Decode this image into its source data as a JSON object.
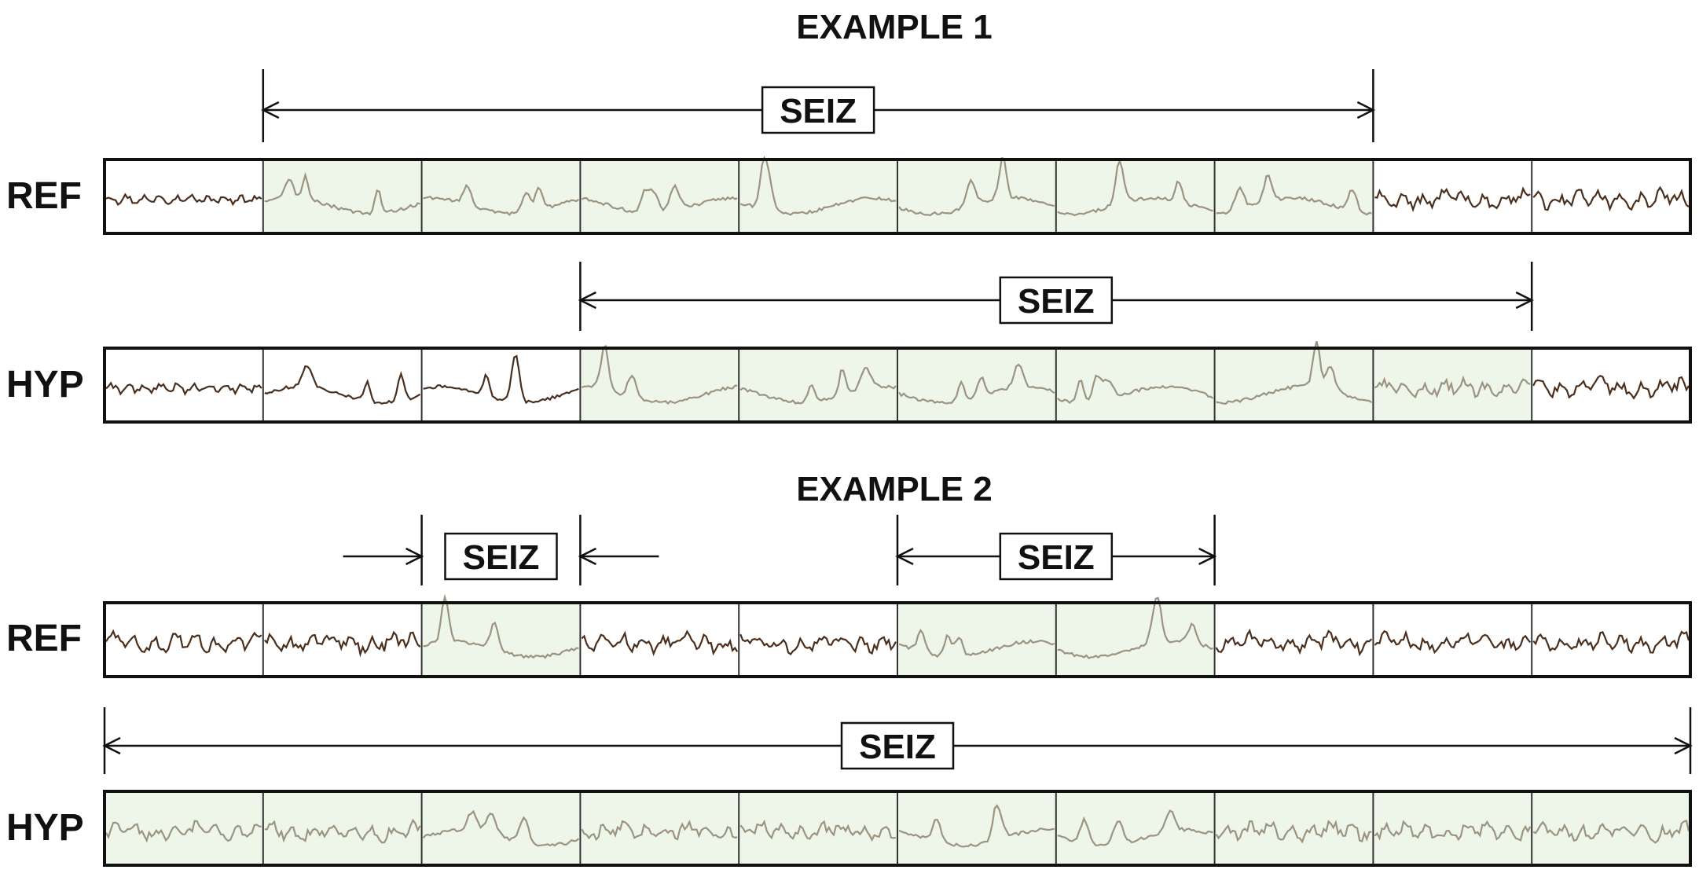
{
  "examples": [
    {
      "title": "EXAMPLE 1",
      "ref": {
        "label": "REF",
        "epoch_wave": [
          "low",
          "spike",
          "spike",
          "spike",
          "spike",
          "spike",
          "spike",
          "spike",
          "mid",
          "mid"
        ],
        "seiz_epochs": [
          1,
          2,
          3,
          4,
          5,
          6,
          7
        ],
        "events": [
          {
            "label": "SEIZ",
            "start_epoch": 1,
            "end_epoch": 8
          }
        ]
      },
      "hyp": {
        "label": "HYP",
        "epoch_wave": [
          "low",
          "spike",
          "spike",
          "spike",
          "spike",
          "spike",
          "spike",
          "spike",
          "mid",
          "mid"
        ],
        "seiz_epochs": [
          3,
          4,
          5,
          6,
          7,
          8
        ],
        "events": [
          {
            "label": "SEIZ",
            "start_epoch": 3,
            "end_epoch": 9
          }
        ]
      }
    },
    {
      "title": "EXAMPLE 2",
      "ref": {
        "label": "REF",
        "epoch_wave": [
          "mid",
          "mid",
          "spike",
          "mid",
          "mid",
          "spike",
          "spike",
          "mid",
          "mid",
          "mid"
        ],
        "seiz_epochs": [
          2,
          5,
          6
        ],
        "events": [
          {
            "label": "SEIZ",
            "start_epoch": 2,
            "end_epoch": 3,
            "style": "inward"
          },
          {
            "label": "SEIZ",
            "start_epoch": 5,
            "end_epoch": 7
          }
        ]
      },
      "hyp": {
        "label": "HYP",
        "epoch_wave": [
          "mid",
          "mid",
          "spike",
          "mid",
          "mid",
          "spike",
          "spike",
          "mid",
          "mid",
          "mid"
        ],
        "seiz_epochs": [
          0,
          1,
          2,
          3,
          4,
          5,
          6,
          7,
          8,
          9
        ],
        "events": [
          {
            "label": "SEIZ",
            "start_epoch": 0,
            "end_epoch": 10
          }
        ]
      }
    }
  ],
  "epochs_per_row": 10,
  "colors": {
    "seiz_fill": "#eef6ea",
    "wave_normal": "#4a2f1d",
    "wave_seiz": "#9c9480",
    "border": "#111111"
  }
}
